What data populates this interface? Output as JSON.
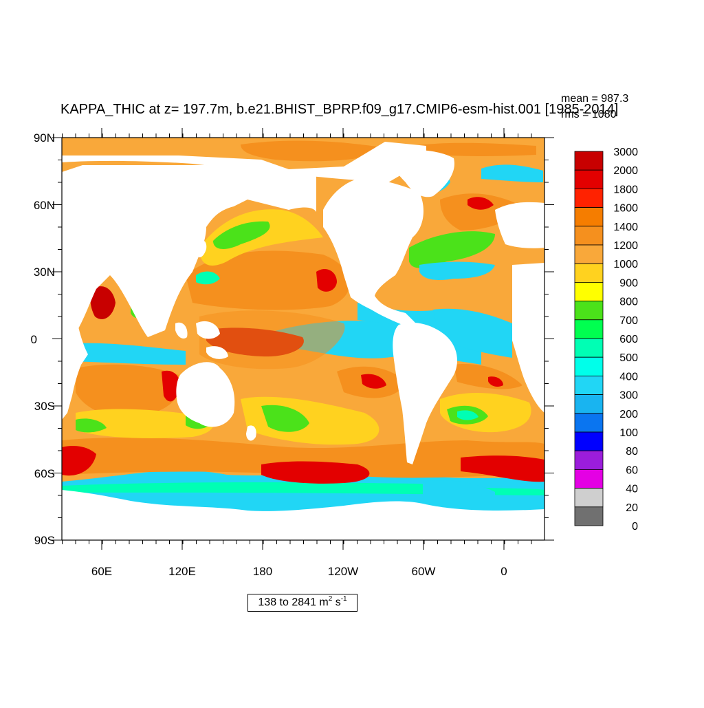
{
  "title": "KAPPA_THIC at z= 197.7m, b.e21.BHIST_BPRP.f09_g17.CMIP6-esm-hist.001 [1985-2014]",
  "stats": {
    "mean": "mean = 987.3",
    "rms": "rms = 1080"
  },
  "range": {
    "prefix": "138 to 2841 m",
    "exp1": "2",
    "mid": " s",
    "exp2": "-1"
  },
  "y_ticks": [
    "90N",
    "60N",
    "30N",
    "0",
    "30S",
    "60S",
    "90S"
  ],
  "x_ticks": [
    "60E",
    "120E",
    "180",
    "120W",
    "60W",
    "0"
  ],
  "colorbar": {
    "labels": [
      "3000",
      "2000",
      "1800",
      "1600",
      "1400",
      "1200",
      "1000",
      "900",
      "800",
      "700",
      "600",
      "500",
      "400",
      "300",
      "200",
      "100",
      "80",
      "60",
      "40",
      "20",
      "0"
    ],
    "colors": [
      "#c80000",
      "#e30000",
      "#ff2200",
      "#f57d00",
      "#f5901e",
      "#f9a83a",
      "#ffd21f",
      "#ffff00",
      "#4be21a",
      "#00ff50",
      "#00ffb4",
      "#00ffea",
      "#21d6f5",
      "#19b4f0",
      "#0a75f0",
      "#0000ff",
      "#9b1ddb",
      "#e400e4",
      "#cfcfcf",
      "#707070"
    ]
  },
  "chart_data": {
    "type": "heatmap",
    "projection": "cylindrical equidistant, centered at 200E",
    "variable": "KAPPA_THIC",
    "units": "m2 s-1",
    "depth": "z= 197.7m",
    "lon_ticks": [
      "60E",
      "120E",
      "180",
      "120W",
      "60W",
      "0"
    ],
    "lat_ticks": [
      "90N",
      "60N",
      "30N",
      "0",
      "30S",
      "60S",
      "90S"
    ],
    "levels": [
      0,
      20,
      40,
      60,
      80,
      100,
      200,
      300,
      400,
      500,
      600,
      700,
      800,
      900,
      1000,
      1200,
      1400,
      1600,
      1800,
      2000,
      3000
    ],
    "min": 138,
    "max": 2841,
    "mean": 987.3,
    "rms": 1080,
    "land_color": "white",
    "colors": [
      "#c80000",
      "#e30000",
      "#ff2200",
      "#f57d00",
      "#f5901e",
      "#f9a83a",
      "#ffd21f",
      "#ffff00",
      "#4be21a",
      "#00ff50",
      "#00ffb4",
      "#00ffea",
      "#21d6f5",
      "#19b4f0",
      "#0a75f0",
      "#0000ff",
      "#9b1ddb",
      "#e400e4",
      "#cfcfcf",
      "#707070"
    ]
  }
}
